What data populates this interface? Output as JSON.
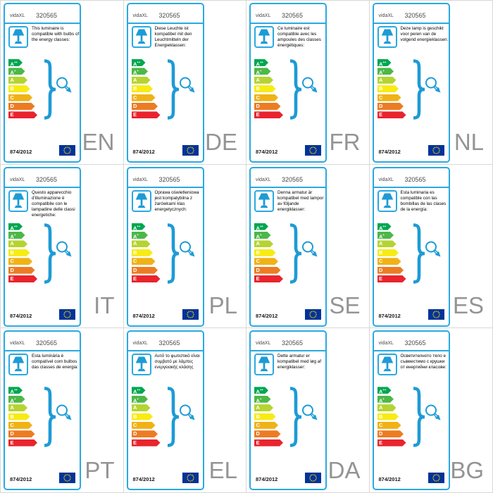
{
  "brand": "vidaXL",
  "product_number": "320565",
  "regulation": "874/2012",
  "colors": {
    "accent_blue": "#29a9e1",
    "icon_blue": "#1d9bd6",
    "language_gray": "#949494",
    "eu_flag_blue": "#003399",
    "eu_star_yellow": "#ffcc00",
    "grid_line_gray": "#d8d8d8"
  },
  "energy_classes": [
    {
      "letter": "A",
      "plus": "++",
      "color": "#00a651"
    },
    {
      "letter": "A",
      "plus": "+",
      "color": "#4db848"
    },
    {
      "letter": "A",
      "plus": "",
      "color": "#b5d332"
    },
    {
      "letter": "B",
      "plus": "",
      "color": "#f7eb16"
    },
    {
      "letter": "C",
      "plus": "",
      "color": "#f0b217"
    },
    {
      "letter": "D",
      "plus": "",
      "color": "#ec7c23"
    },
    {
      "letter": "E",
      "plus": "",
      "color": "#e9242d"
    }
  ],
  "cards": [
    {
      "lang": "EN",
      "description": "This luminaire is compatible with bulbs of the energy classes:"
    },
    {
      "lang": "DE",
      "description": "Diese Leuchte ist kompatibel mit den Leuchtmitteln der Energieklassen:"
    },
    {
      "lang": "FR",
      "description": "Ce luminaire est compatible avec les ampoules des classes énergétiques:"
    },
    {
      "lang": "NL",
      "description": "Deze lamp is geschikt voor peren van de volgend energieklassen:"
    },
    {
      "lang": "IT",
      "description": "Questo apparecchio d'illuminazione è compatibile con le lampadine delle classi energetiche:"
    },
    {
      "lang": "PL",
      "description": "Oprawa oświetleniowa jest kompatybilna z żarówkami klas energetycznych:"
    },
    {
      "lang": "SE",
      "description": "Denna armatur är kompatibel med lampor av följande energiklasser:"
    },
    {
      "lang": "ES",
      "description": "Esta luminaria es compatible con las bombillas de las clases de la energía:"
    },
    {
      "lang": "PT",
      "description": "Esta luminária é compatível com bulbos das classes de energia:"
    },
    {
      "lang": "EL",
      "description": "Αυτό το φωτιστικό είναι συμβατό με λάμπες ενεργειακής κλάσης"
    },
    {
      "lang": "DA",
      "description": "Dette armatur er kompatibel med løg af energiklasser:"
    },
    {
      "lang": "BG",
      "description": "Осветителното тяло е съвместимо с крушки от енергийни класове:"
    }
  ]
}
